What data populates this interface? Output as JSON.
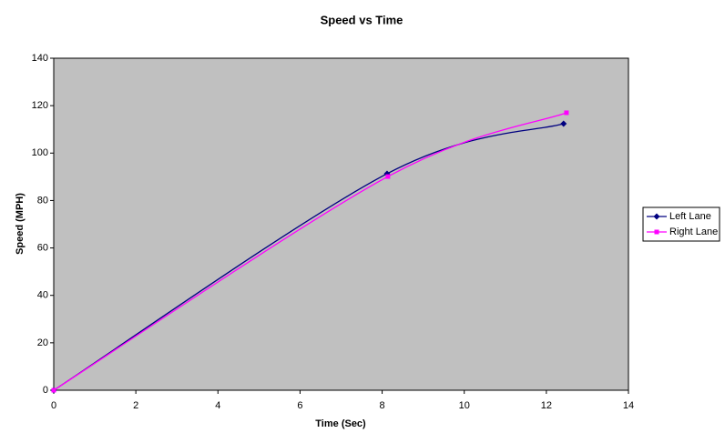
{
  "chart_data": {
    "type": "scatter-line",
    "title": "Speed vs Time",
    "x_label": "Time (Sec)",
    "y_label": "Speed (MPH)",
    "smooth": true,
    "series": [
      {
        "name": "Left Lane",
        "color": "#000080",
        "marker": "diamond",
        "x": [
          0,
          8.12,
          12.42
        ],
        "values": [
          0,
          91.3,
          112.4
        ]
      },
      {
        "name": "Right Lane",
        "color": "#ff00ff",
        "marker": "square",
        "x": [
          0,
          8.14,
          12.49
        ],
        "values": [
          0,
          90.1,
          117.0
        ]
      }
    ],
    "xlim": [
      0,
      14
    ],
    "xticks": [
      0,
      2,
      4,
      6,
      8,
      10,
      12,
      14
    ],
    "ylim": [
      0,
      140
    ],
    "yticks": [
      0,
      20,
      40,
      60,
      80,
      100,
      120,
      140
    ],
    "grid": false,
    "legend": "right",
    "plot_background": "#c0c0c0"
  }
}
